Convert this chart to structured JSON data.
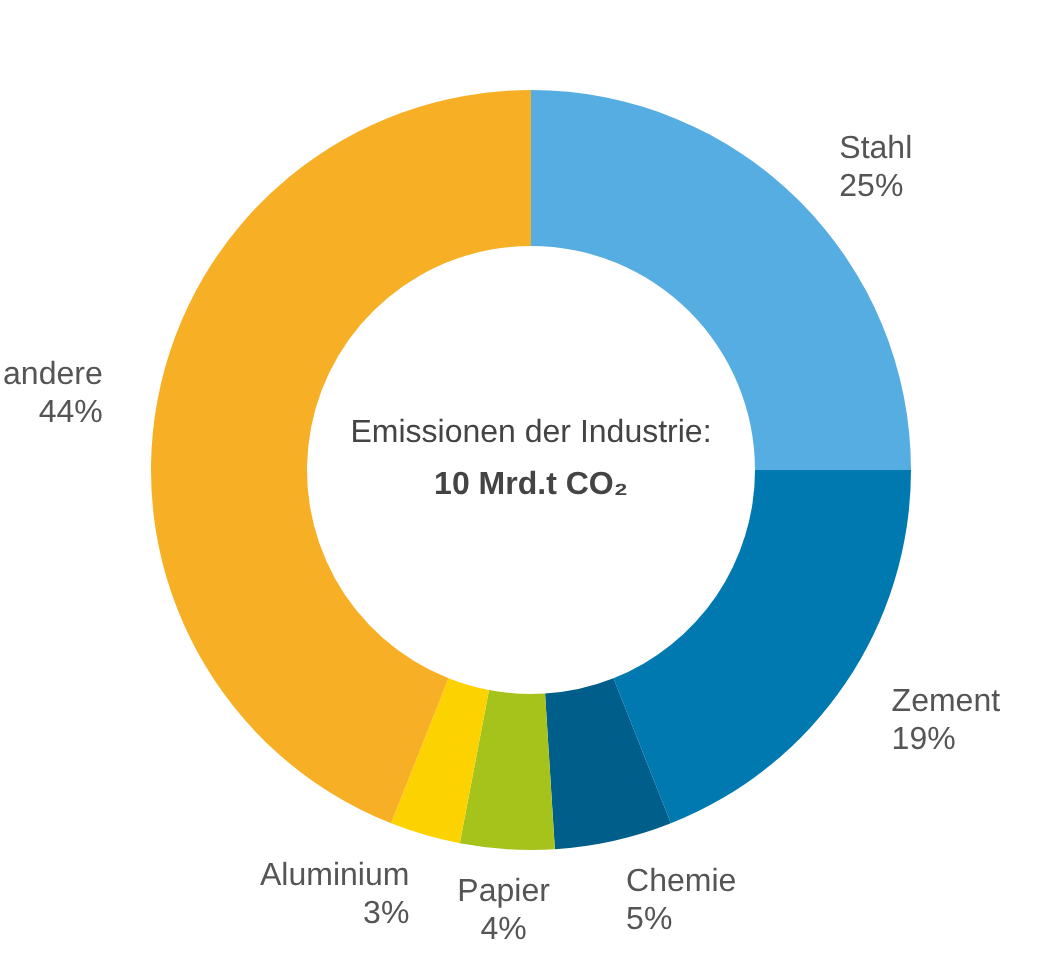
{
  "chart_data": {
    "type": "donut",
    "title": "Emissionen der Industrie:",
    "subtitle": "10 Mrd.t CO₂",
    "categories": [
      "Stahl",
      "Zement",
      "Chemie",
      "Papier",
      "Aluminium",
      "andere"
    ],
    "values": [
      25,
      19,
      5,
      4,
      3,
      44
    ],
    "value_labels": [
      "25%",
      "19%",
      "5%",
      "4%",
      "3%",
      "44%"
    ],
    "colors": [
      "#56ade2",
      "#0079b1",
      "#005e8a",
      "#a6c31b",
      "#fcd300",
      "#f7b025"
    ]
  }
}
